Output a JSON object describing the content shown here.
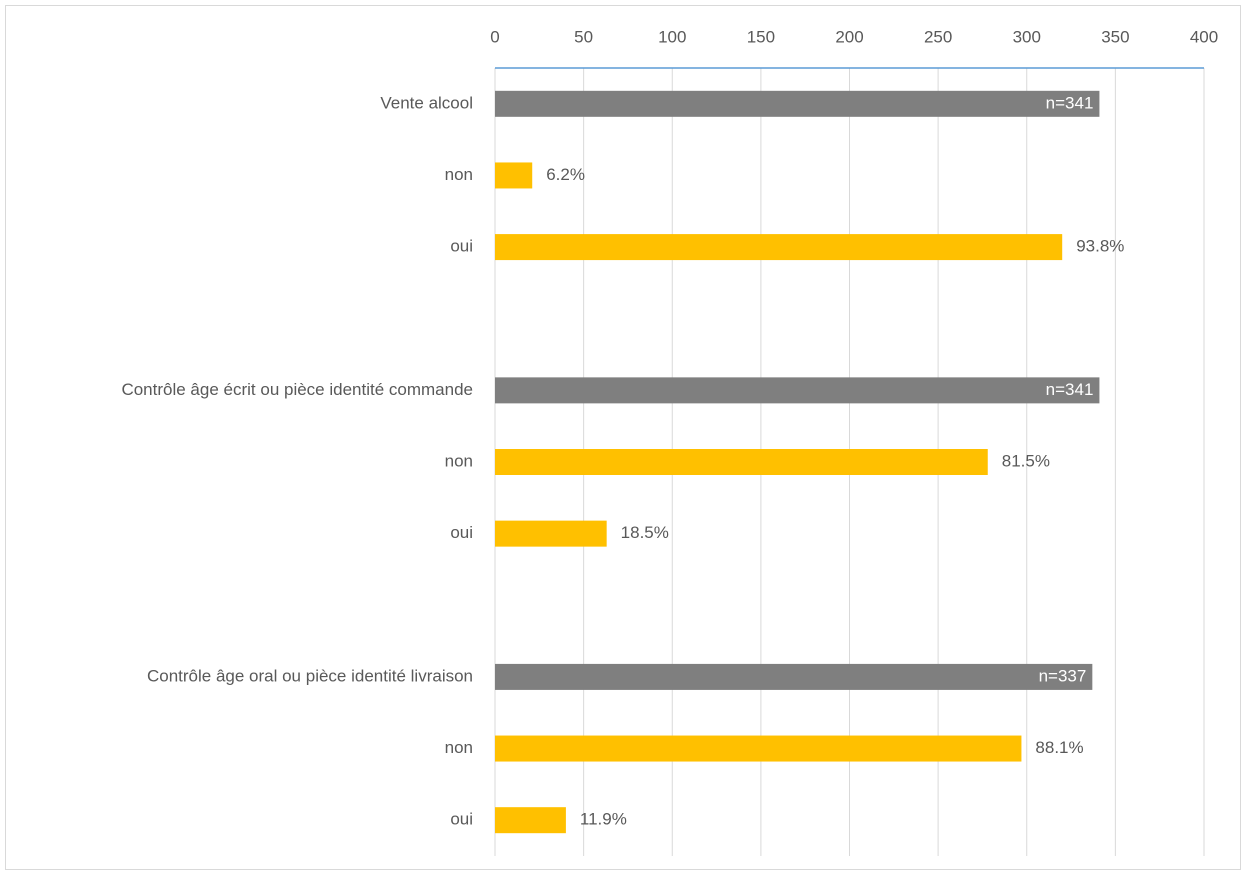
{
  "chart_data": {
    "type": "bar",
    "orientation": "horizontal",
    "categories": [
      "Vente alcool",
      "non",
      "oui",
      null,
      "Contrôle âge écrit ou pièce identité commande",
      "non",
      "oui",
      null,
      "Contrôle âge oral ou pièce identité livraison",
      "non",
      "oui"
    ],
    "series": [
      {
        "color": "#7f7f7f",
        "values": [
          341,
          null,
          null,
          null,
          341,
          null,
          null,
          null,
          337,
          null,
          null
        ],
        "value_labels": [
          "n=341",
          null,
          null,
          null,
          "n=341",
          null,
          null,
          null,
          "n=337",
          null,
          null
        ]
      },
      {
        "color": "#ffc000",
        "values": [
          null,
          21,
          320,
          null,
          null,
          278,
          63,
          null,
          null,
          297,
          40
        ],
        "value_labels": [
          null,
          "6.2%",
          "93.8%",
          null,
          null,
          "81.5%",
          "18.5%",
          null,
          null,
          "88.1%",
          "11.9%"
        ]
      }
    ],
    "xlim": [
      0,
      400
    ],
    "xticks": [
      0,
      50,
      100,
      150,
      200,
      250,
      300,
      350,
      400
    ],
    "grid": true
  }
}
